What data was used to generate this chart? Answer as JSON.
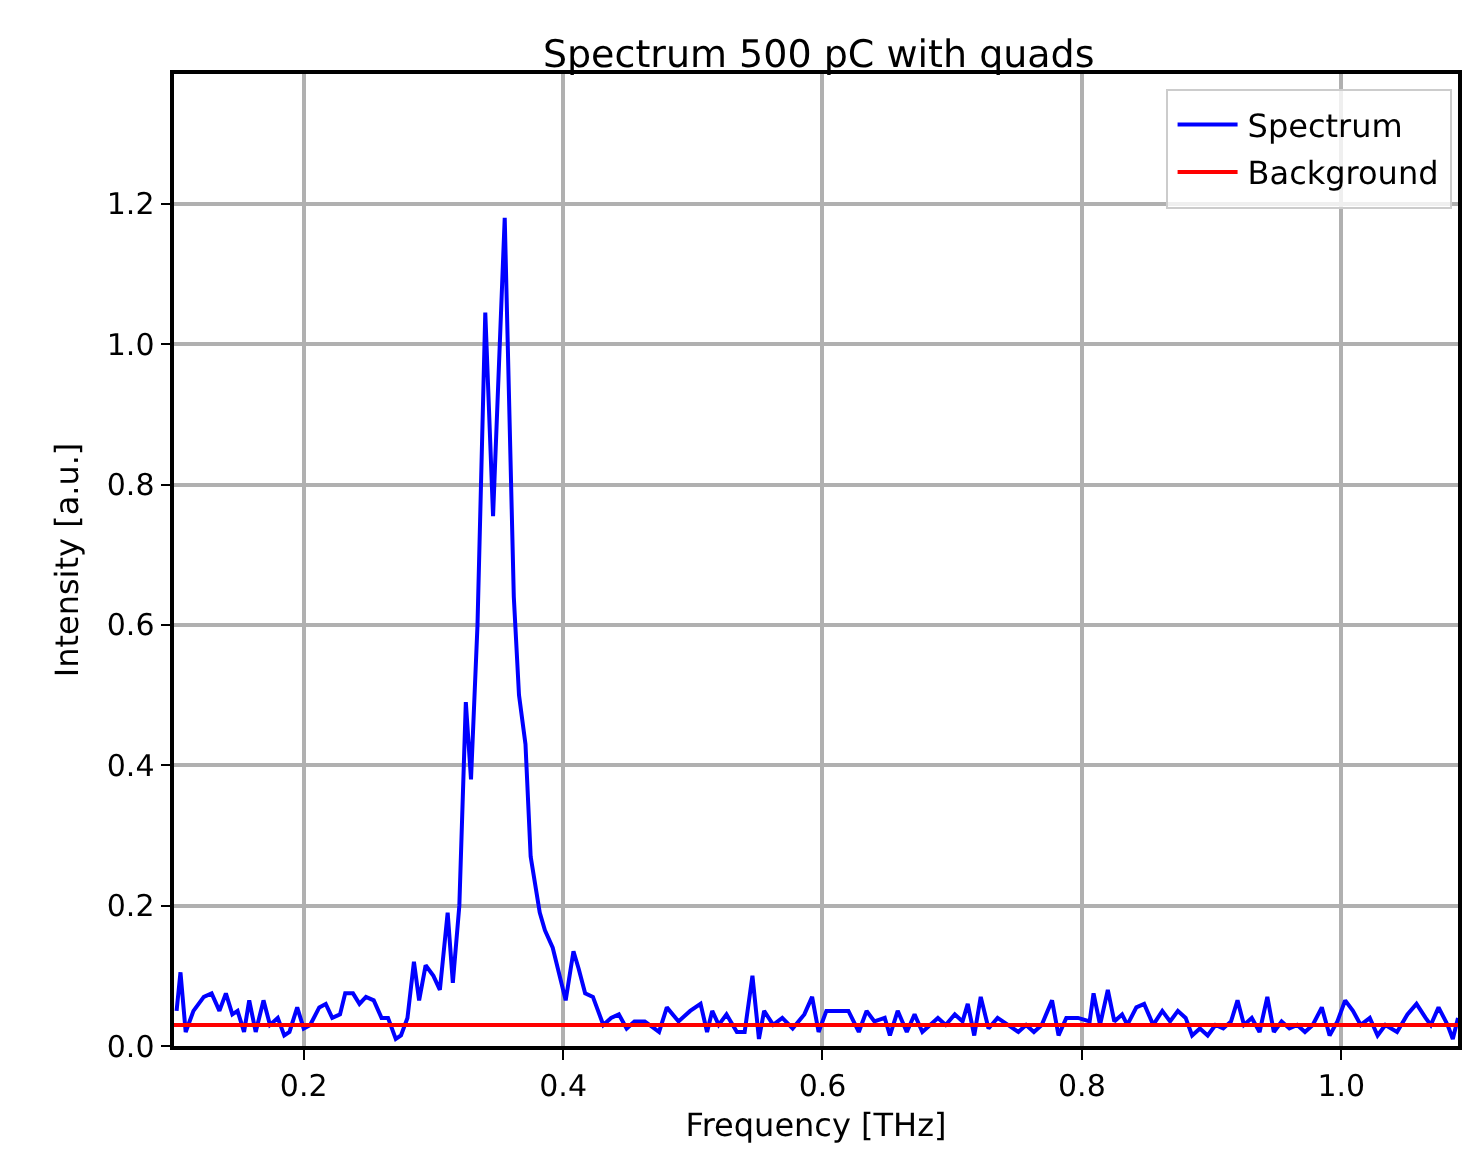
{
  "chart_data": {
    "type": "line",
    "title": "Spectrum 500 pC with quads",
    "xlabel": "Frequency [THz]",
    "ylabel": "Intensity [a.u.]",
    "xlim": [
      0.1,
      1.09
    ],
    "ylim": [
      0,
      1.385
    ],
    "xticks": [
      0.2,
      0.4,
      0.6,
      0.8,
      {
        "value": 1,
        "label": "1.0"
      }
    ],
    "yticks": [
      {
        "value": 0,
        "label": "0.0"
      },
      {
        "value": 0.2,
        "label": "0.2"
      },
      {
        "value": 0.4,
        "label": "0.4"
      },
      {
        "value": 0.6,
        "label": "0.6"
      },
      {
        "value": 0.8,
        "label": "0.8"
      },
      {
        "value": 1.0,
        "label": "1.0"
      },
      {
        "value": 1.2,
        "label": "1.2"
      }
    ],
    "grid": true,
    "legend": "top right",
    "marker": "none",
    "line_style": "solid",
    "series": [
      {
        "name": "Spectrum",
        "color": "#0000ff",
        "x": [
          0.102,
          0.105,
          0.109,
          0.115,
          0.123,
          0.129,
          0.135,
          0.14,
          0.145,
          0.149,
          0.154,
          0.158,
          0.163,
          0.169,
          0.174,
          0.18,
          0.185,
          0.189,
          0.195,
          0.2,
          0.205,
          0.212,
          0.217,
          0.222,
          0.228,
          0.232,
          0.238,
          0.243,
          0.248,
          0.254,
          0.26,
          0.265,
          0.271,
          0.275,
          0.28,
          0.285,
          0.289,
          0.294,
          0.3,
          0.305,
          0.311,
          0.315,
          0.32,
          0.325,
          0.329,
          0.334,
          0.34,
          0.346,
          0.355,
          0.362,
          0.366,
          0.371,
          0.375,
          0.382,
          0.386,
          0.392,
          0.402,
          0.408,
          0.412,
          0.417,
          0.423,
          0.431,
          0.437,
          0.443,
          0.449,
          0.455,
          0.463,
          0.474,
          0.48,
          0.489,
          0.498,
          0.506,
          0.511,
          0.515,
          0.52,
          0.526,
          0.534,
          0.54,
          0.546,
          0.551,
          0.555,
          0.562,
          0.569,
          0.577,
          0.586,
          0.592,
          0.597,
          0.603,
          0.612,
          0.62,
          0.628,
          0.634,
          0.64,
          0.648,
          0.652,
          0.658,
          0.665,
          0.671,
          0.677,
          0.683,
          0.689,
          0.695,
          0.702,
          0.708,
          0.712,
          0.717,
          0.722,
          0.728,
          0.735,
          0.743,
          0.751,
          0.757,
          0.763,
          0.769,
          0.777,
          0.782,
          0.788,
          0.797,
          0.806,
          0.809,
          0.814,
          0.82,
          0.825,
          0.831,
          0.835,
          0.842,
          0.848,
          0.855,
          0.862,
          0.868,
          0.874,
          0.88,
          0.885,
          0.891,
          0.897,
          0.903,
          0.909,
          0.915,
          0.92,
          0.925,
          0.931,
          0.937,
          0.943,
          0.948,
          0.954,
          0.96,
          0.966,
          0.972,
          0.978,
          0.985,
          0.991,
          0.997,
          1.003,
          1.009,
          1.015,
          1.022,
          1.028,
          1.034,
          1.043,
          1.051,
          1.058,
          1.065,
          1.069,
          1.075,
          1.082,
          1.086,
          1.09
        ],
        "values": [
          0.05,
          0.105,
          0.02,
          0.05,
          0.07,
          0.075,
          0.05,
          0.075,
          0.045,
          0.05,
          0.02,
          0.065,
          0.02,
          0.065,
          0.03,
          0.04,
          0.015,
          0.02,
          0.055,
          0.025,
          0.03,
          0.055,
          0.06,
          0.04,
          0.045,
          0.075,
          0.075,
          0.06,
          0.07,
          0.065,
          0.04,
          0.04,
          0.01,
          0.015,
          0.04,
          0.12,
          0.065,
          0.115,
          0.1,
          0.08,
          0.19,
          0.09,
          0.2,
          0.49,
          0.38,
          0.6,
          1.045,
          0.755,
          1.18,
          0.64,
          0.5,
          0.43,
          0.27,
          0.19,
          0.165,
          0.14,
          0.065,
          0.135,
          0.11,
          0.075,
          0.07,
          0.03,
          0.04,
          0.045,
          0.025,
          0.035,
          0.035,
          0.02,
          0.055,
          0.035,
          0.05,
          0.06,
          0.02,
          0.05,
          0.03,
          0.045,
          0.02,
          0.02,
          0.1,
          0.01,
          0.05,
          0.03,
          0.04,
          0.025,
          0.045,
          0.07,
          0.02,
          0.05,
          0.05,
          0.05,
          0.02,
          0.05,
          0.035,
          0.04,
          0.015,
          0.05,
          0.02,
          0.045,
          0.02,
          0.03,
          0.04,
          0.03,
          0.045,
          0.035,
          0.06,
          0.015,
          0.07,
          0.025,
          0.04,
          0.03,
          0.02,
          0.03,
          0.02,
          0.03,
          0.065,
          0.015,
          0.04,
          0.04,
          0.035,
          0.075,
          0.03,
          0.08,
          0.035,
          0.045,
          0.03,
          0.055,
          0.06,
          0.03,
          0.05,
          0.035,
          0.05,
          0.04,
          0.015,
          0.025,
          0.015,
          0.03,
          0.025,
          0.035,
          0.065,
          0.03,
          0.04,
          0.02,
          0.07,
          0.02,
          0.035,
          0.025,
          0.03,
          0.02,
          0.03,
          0.055,
          0.015,
          0.035,
          0.065,
          0.05,
          0.03,
          0.04,
          0.015,
          0.03,
          0.02,
          0.045,
          0.06,
          0.04,
          0.03,
          0.055,
          0.03,
          0.01,
          0.04
        ]
      },
      {
        "name": "Background",
        "color": "#ff0000",
        "x": [
          0.1,
          1.09
        ],
        "values": [
          0.03,
          0.03
        ]
      }
    ]
  }
}
